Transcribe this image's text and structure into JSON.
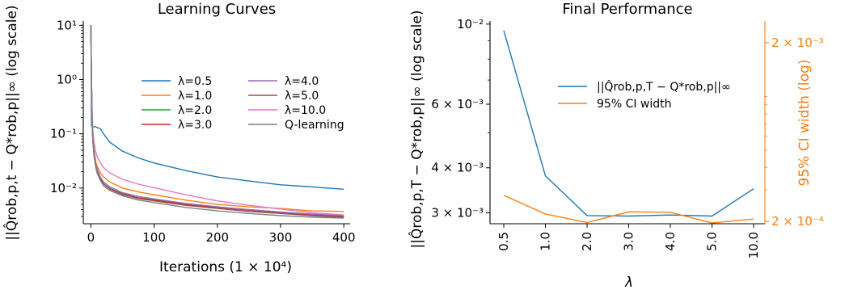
{
  "chart_data": [
    {
      "type": "line",
      "title": "Learning Curves",
      "xlabel": "Iterations (1 × 10⁴)",
      "ylabel": "||Q̂rob,p,t − Q*rob,p||∞ (log scale)",
      "yscale": "log",
      "xlim": [
        -12,
        410
      ],
      "ylim": [
        0.0022,
        12
      ],
      "xticks": [
        0,
        100,
        200,
        300,
        400
      ],
      "xtick_labels": [
        "0",
        "100",
        "200",
        "300",
        "400"
      ],
      "yticks": [
        0.01,
        0.1,
        1,
        10
      ],
      "ytick_labels": [
        "10⁻²",
        "10⁻¹",
        "10⁰",
        "10¹"
      ],
      "legend_placement": "upper-right",
      "legend_columns": 2,
      "grid": false,
      "x": [
        0,
        1,
        2,
        3,
        5,
        8,
        10,
        15,
        20,
        30,
        50,
        75,
        100,
        150,
        200,
        250,
        300,
        350,
        400
      ],
      "series": [
        {
          "name": "λ=0.5",
          "color": "#1f77b4",
          "values": [
            10,
            0.14,
            0.135,
            0.135,
            0.135,
            0.135,
            0.13,
            0.125,
            0.1,
            0.07,
            0.048,
            0.036,
            0.029,
            0.021,
            0.016,
            0.0135,
            0.0115,
            0.0105,
            0.0095
          ]
        },
        {
          "name": "λ=1.0",
          "color": "#ff7f0e",
          "values": [
            10,
            0.9,
            0.25,
            0.1,
            0.05,
            0.03,
            0.025,
            0.019,
            0.016,
            0.013,
            0.01,
            0.0085,
            0.0075,
            0.006,
            0.005,
            0.0045,
            0.0042,
            0.0038,
            0.0037
          ]
        },
        {
          "name": "λ=2.0",
          "color": "#2ca02c",
          "values": [
            10,
            0.8,
            0.2,
            0.08,
            0.04,
            0.024,
            0.019,
            0.014,
            0.012,
            0.0098,
            0.0078,
            0.0066,
            0.006,
            0.005,
            0.0044,
            0.004,
            0.0036,
            0.0033,
            0.0031
          ]
        },
        {
          "name": "λ=3.0",
          "color": "#d62728",
          "values": [
            10,
            0.8,
            0.2,
            0.08,
            0.04,
            0.024,
            0.02,
            0.015,
            0.012,
            0.0098,
            0.0078,
            0.0066,
            0.006,
            0.005,
            0.0044,
            0.0039,
            0.0035,
            0.0032,
            0.003
          ]
        },
        {
          "name": "λ=4.0",
          "color": "#9467bd",
          "values": [
            10,
            0.85,
            0.22,
            0.09,
            0.045,
            0.027,
            0.022,
            0.016,
            0.013,
            0.0105,
            0.0082,
            0.007,
            0.0063,
            0.0052,
            0.0045,
            0.004,
            0.0036,
            0.0033,
            0.0031
          ]
        },
        {
          "name": "λ=5.0",
          "color": "#8c564b",
          "values": [
            10,
            0.8,
            0.2,
            0.08,
            0.04,
            0.024,
            0.019,
            0.014,
            0.012,
            0.0096,
            0.0076,
            0.0064,
            0.0058,
            0.0048,
            0.0042,
            0.0037,
            0.0034,
            0.0031,
            0.0029
          ]
        },
        {
          "name": "λ=10.0",
          "color": "#e377c2",
          "values": [
            10,
            0.9,
            0.3,
            0.13,
            0.07,
            0.045,
            0.038,
            0.029,
            0.024,
            0.019,
            0.0145,
            0.0118,
            0.0102,
            0.0075,
            0.0058,
            0.0048,
            0.0041,
            0.0035,
            0.0032
          ]
        },
        {
          "name": "Q-learning",
          "color": "#7f7f7f",
          "values": [
            10,
            0.8,
            0.2,
            0.08,
            0.04,
            0.024,
            0.019,
            0.014,
            0.011,
            0.009,
            0.0072,
            0.006,
            0.0054,
            0.0044,
            0.0038,
            0.0034,
            0.0031,
            0.0029,
            0.0028
          ]
        }
      ]
    },
    {
      "type": "line",
      "title": "Final Performance",
      "xlabel": "λ",
      "ylabel": "||Q̂rob,p,T − Q*rob,p||∞ (log scale)",
      "y2label": "95% CI width (log)",
      "yscale": "log",
      "y2scale": "log",
      "categories": [
        "0.5",
        "1.0",
        "2.0",
        "3.0",
        "4.0",
        "5.0",
        "10.0"
      ],
      "ylim": [
        0.0028,
        0.0102
      ],
      "y2lim": [
        0.000194,
        0.00265
      ],
      "yticks": [
        0.003,
        0.004,
        0.006,
        0.01
      ],
      "ytick_labels": [
        "3 × 10⁻³",
        "4 × 10⁻³",
        "6 × 10⁻³",
        "10⁻²"
      ],
      "y2ticks": [
        0.0002,
        0.002
      ],
      "y2tick_labels": [
        "2 × 10⁻⁴",
        "2 × 10⁻³"
      ],
      "legend_placement": "upper-right",
      "grid": false,
      "series": [
        {
          "name": "||Q̂rob,p,T − Q*rob,p||∞",
          "axis": "left",
          "color": "#1f77b4",
          "values": [
            0.0096,
            0.0038,
            0.00295,
            0.00294,
            0.00296,
            0.00294,
            0.0035
          ]
        },
        {
          "name": "95% CI width",
          "axis": "right",
          "color": "#ff7f0e",
          "values": [
            0.00028,
            0.00022,
            0.000197,
            0.000226,
            0.000225,
            0.000196,
            0.000206
          ]
        }
      ]
    }
  ]
}
